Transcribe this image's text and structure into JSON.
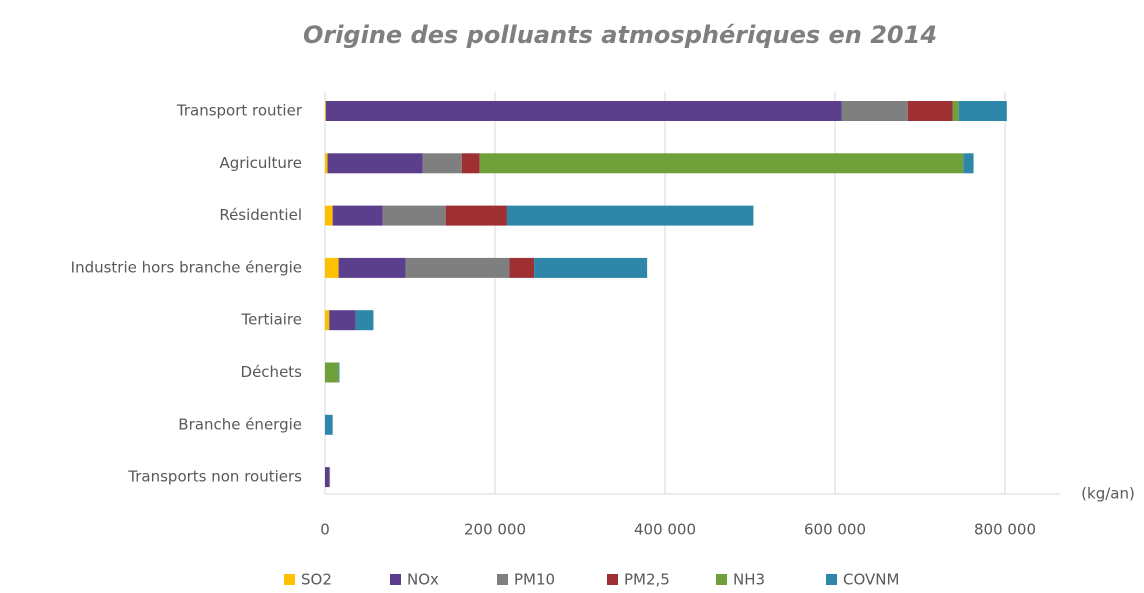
{
  "chart_data": {
    "type": "stacked-bar-horizontal",
    "title": "Origine des polluants atmosphériques en 2014",
    "x_label": "(kg/an)",
    "categories": [
      "Transport routier",
      "Agriculture",
      "Résidentiel",
      "Industrie hors branche énergie",
      "Tertiaire",
      "Déchets",
      "Branche énergie",
      "Transports non routiers"
    ],
    "series": [
      {
        "name": "SO2",
        "color": "#ffc000",
        "values": [
          1000,
          3000,
          9000,
          16000,
          5000,
          0,
          0,
          0
        ]
      },
      {
        "name": "NOx",
        "color": "#5b3f8c",
        "values": [
          607000,
          112000,
          59000,
          79000,
          31000,
          0,
          0,
          5000
        ]
      },
      {
        "name": "PM10",
        "color": "#7f7f7f",
        "values": [
          77600,
          46000,
          74000,
          122000,
          0,
          0,
          0,
          1000
        ]
      },
      {
        "name": "PM2,5",
        "color": "#9e3033",
        "values": [
          53000,
          21000,
          72000,
          29000,
          0,
          0,
          0,
          0
        ]
      },
      {
        "name": "NH3",
        "color": "#70a03a",
        "values": [
          7000,
          569000,
          0,
          0,
          0,
          16000,
          0,
          0
        ]
      },
      {
        "name": "COVNM",
        "color": "#2e86a8",
        "values": [
          56500,
          12000,
          290000,
          133000,
          21000,
          1000,
          9000,
          0
        ]
      }
    ],
    "xlim": [
      0,
      800000
    ],
    "xticks": [
      0,
      {
        "value": 200000,
        "label": "200 000"
      },
      {
        "value": 400000,
        "label": "400 000"
      },
      {
        "value": 600000,
        "label": "600 000"
      },
      {
        "value": 800000,
        "label": "800 000"
      }
    ],
    "grid": true,
    "legend": "bottom"
  }
}
